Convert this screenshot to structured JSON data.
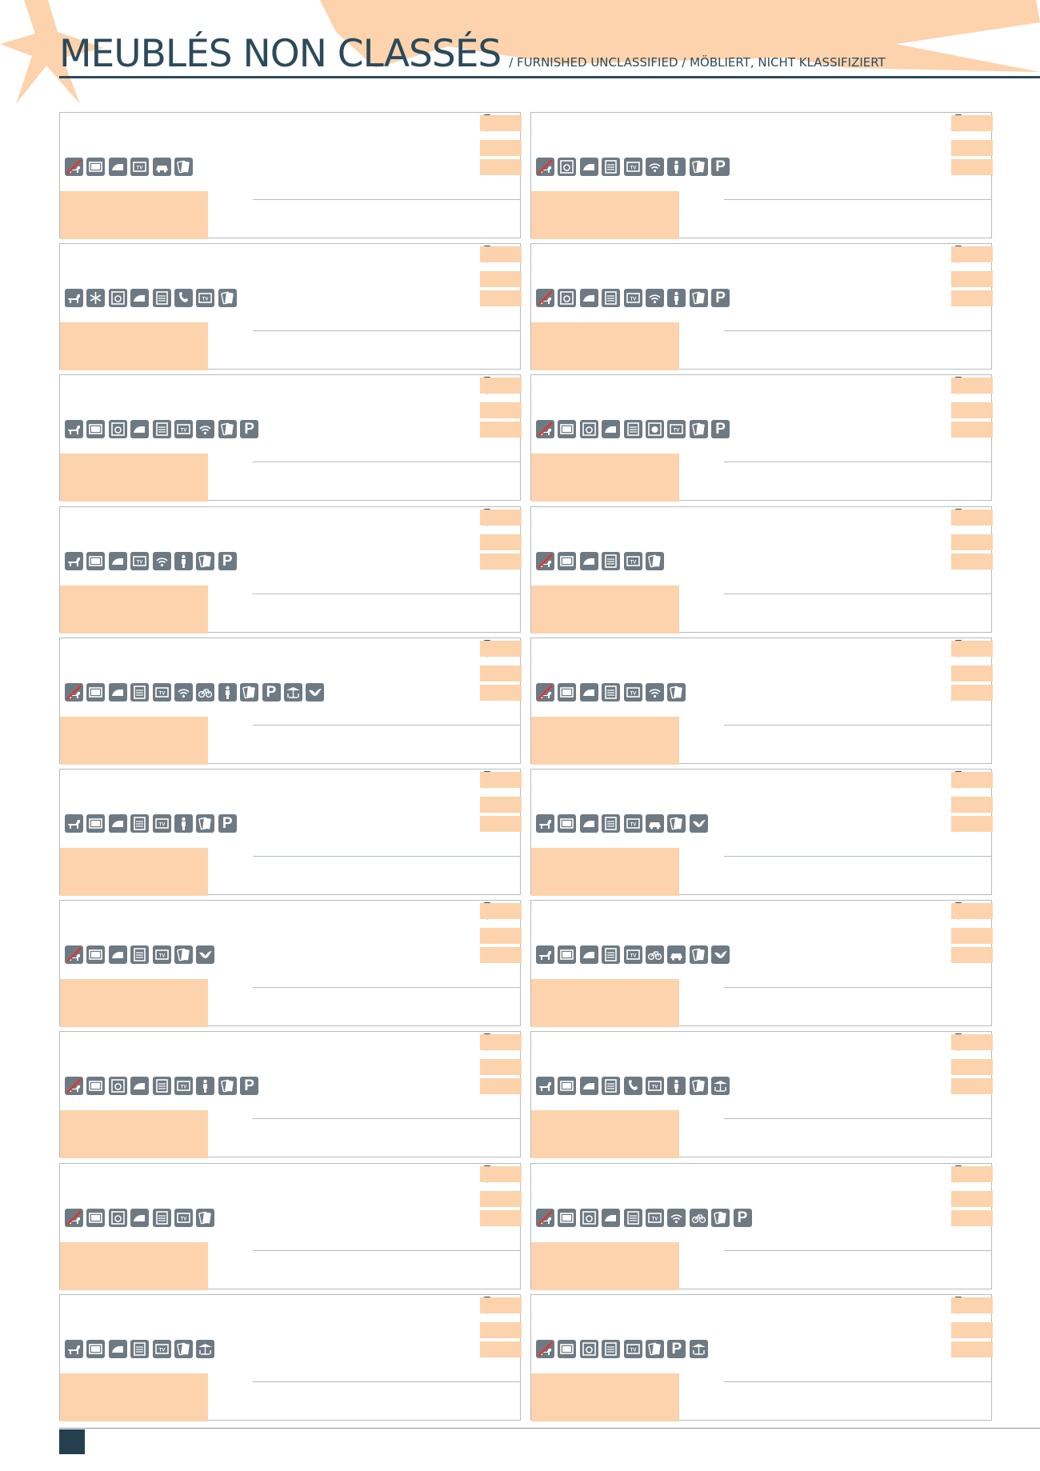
{
  "header": {
    "title": "MEUBLÉS NON CLASSÉS",
    "subtitle": "/ FURNISHED UNCLASSIFIED / MÖBLIERT, NICHT KLASSIFIZIERT"
  },
  "colors": {
    "accent": "#fcd3ac",
    "text": "#2c4a5a",
    "icon": "#6e7a83",
    "border": "#b7bcc0",
    "footer": "#243f4d"
  },
  "listings": [
    {
      "icons": [
        "no-pets",
        "microwave",
        "iron",
        "tv",
        "garage",
        "card-payment"
      ]
    },
    {
      "icons": [
        "no-pets",
        "washing-machine",
        "iron",
        "dishwasher",
        "tv",
        "wifi",
        "child",
        "card-payment",
        "parking"
      ]
    },
    {
      "icons": [
        "pets",
        "air-conditioning",
        "washing-machine",
        "iron",
        "dishwasher",
        "phone",
        "tv",
        "card-payment"
      ]
    },
    {
      "icons": [
        "no-pets",
        "washing-machine",
        "iron",
        "dishwasher",
        "tv",
        "wifi",
        "child",
        "card-payment",
        "parking"
      ]
    },
    {
      "icons": [
        "pets",
        "microwave",
        "washing-machine",
        "iron",
        "dishwasher",
        "tv",
        "wifi",
        "card-payment",
        "parking"
      ]
    },
    {
      "icons": [
        "no-pets",
        "microwave",
        "washing-machine",
        "iron",
        "dishwasher",
        "dryer",
        "tv",
        "card-payment",
        "parking"
      ]
    },
    {
      "icons": [
        "pets",
        "microwave",
        "iron",
        "tv",
        "wifi",
        "child",
        "card-payment",
        "parking"
      ]
    },
    {
      "icons": [
        "no-pets",
        "microwave",
        "iron",
        "dishwasher",
        "tv",
        "card-payment"
      ]
    },
    {
      "icons": [
        "no-pets",
        "microwave",
        "iron",
        "dishwasher",
        "tv",
        "wifi",
        "bicycle",
        "child",
        "card-payment",
        "parking",
        "terrace",
        "ancv"
      ]
    },
    {
      "icons": [
        "no-pets",
        "microwave",
        "iron",
        "dishwasher",
        "tv",
        "wifi",
        "card-payment"
      ]
    },
    {
      "icons": [
        "pets",
        "microwave",
        "iron",
        "dishwasher",
        "tv",
        "child",
        "card-payment",
        "parking"
      ]
    },
    {
      "icons": [
        "pets",
        "microwave",
        "iron",
        "dishwasher",
        "tv",
        "garage",
        "card-payment",
        "ancv"
      ]
    },
    {
      "icons": [
        "no-pets",
        "microwave",
        "iron",
        "dishwasher",
        "tv",
        "card-payment",
        "ancv"
      ]
    },
    {
      "icons": [
        "pets",
        "microwave",
        "iron",
        "dishwasher",
        "tv",
        "bicycle",
        "garage",
        "card-payment",
        "ancv"
      ]
    },
    {
      "icons": [
        "no-pets",
        "microwave",
        "washing-machine",
        "iron",
        "dishwasher",
        "tv",
        "child",
        "card-payment",
        "parking"
      ]
    },
    {
      "icons": [
        "pets",
        "microwave",
        "iron",
        "dishwasher",
        "phone",
        "tv",
        "child",
        "card-payment",
        "terrace"
      ]
    },
    {
      "icons": [
        "no-pets",
        "microwave",
        "washing-machine",
        "iron",
        "dishwasher",
        "tv",
        "card-payment"
      ]
    },
    {
      "icons": [
        "no-pets",
        "microwave",
        "washing-machine",
        "iron",
        "dishwasher",
        "tv",
        "wifi",
        "bicycle",
        "card-payment",
        "parking"
      ]
    },
    {
      "icons": [
        "pets",
        "microwave",
        "iron",
        "dishwasher",
        "tv",
        "card-payment",
        "terrace"
      ]
    },
    {
      "icons": [
        "no-pets",
        "microwave",
        "washing-machine",
        "dishwasher",
        "tv",
        "card-payment",
        "parking",
        "terrace"
      ]
    }
  ]
}
